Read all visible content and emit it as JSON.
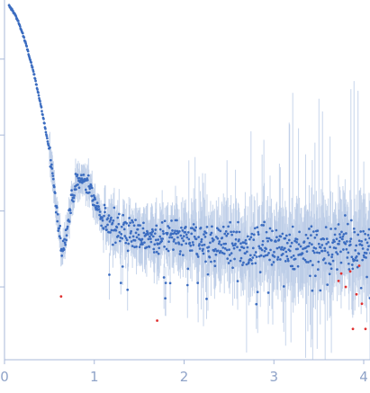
{
  "chart_data": {
    "type": "scatter",
    "title": "",
    "xlabel": "",
    "ylabel": "",
    "xlim": [
      0,
      4.1
    ],
    "ylog": true,
    "ylim": [
      0.0011,
      60
    ],
    "x_ticks": [
      0,
      1,
      2,
      3,
      4
    ],
    "x_tick_labels": [
      "0",
      "1",
      "2",
      "3",
      "4"
    ],
    "y_ticks": [
      0.01,
      0.1,
      1,
      10
    ],
    "grid": false,
    "legend": "none",
    "colors": {
      "points": "#3b6cc0",
      "error_bars": "#b9cbe6",
      "outliers": "#e03030",
      "axis": "#a9b9d8"
    },
    "profile": {
      "description_points": [
        [
          0.05,
          50
        ],
        [
          0.1,
          42
        ],
        [
          0.15,
          32
        ],
        [
          0.2,
          22
        ],
        [
          0.25,
          14
        ],
        [
          0.3,
          8.5
        ],
        [
          0.35,
          5
        ],
        [
          0.4,
          2.6
        ],
        [
          0.45,
          1.3
        ],
        [
          0.5,
          0.62
        ],
        [
          0.53,
          0.38
        ],
        [
          0.56,
          0.16
        ],
        [
          0.6,
          0.06
        ],
        [
          0.64,
          0.03
        ],
        [
          0.68,
          0.045
        ],
        [
          0.72,
          0.09
        ],
        [
          0.76,
          0.16
        ],
        [
          0.8,
          0.22
        ],
        [
          0.85,
          0.26
        ],
        [
          0.9,
          0.25
        ],
        [
          0.95,
          0.2
        ],
        [
          1.0,
          0.14
        ],
        [
          1.05,
          0.1
        ],
        [
          1.1,
          0.075
        ],
        [
          1.2,
          0.06
        ],
        [
          1.4,
          0.05
        ],
        [
          1.7,
          0.045
        ],
        [
          2.0,
          0.04
        ],
        [
          2.5,
          0.036
        ],
        [
          3.0,
          0.034
        ],
        [
          3.5,
          0.034
        ],
        [
          4.1,
          0.034
        ]
      ],
      "point_count": 820
    },
    "outliers": [
      [
        0.63,
        0.0075
      ],
      [
        1.7,
        0.0036
      ],
      [
        3.72,
        0.012
      ],
      [
        3.75,
        0.015
      ],
      [
        3.8,
        0.01
      ],
      [
        3.85,
        0.016
      ],
      [
        3.88,
        0.0028
      ],
      [
        3.92,
        0.008
      ],
      [
        3.95,
        0.019
      ],
      [
        3.98,
        0.006
      ],
      [
        4.02,
        0.0028
      ]
    ]
  }
}
